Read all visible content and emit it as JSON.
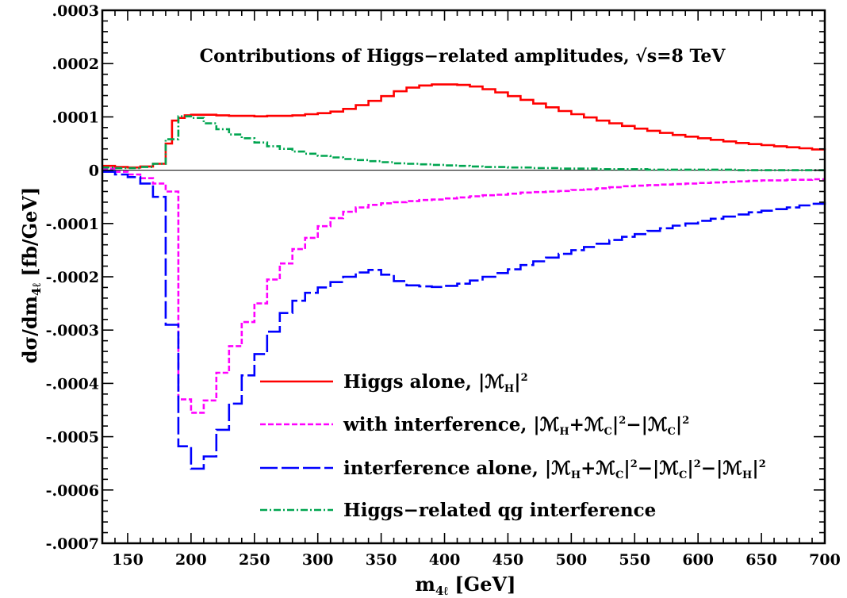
{
  "chart_data": {
    "type": "line",
    "step": true,
    "title": "Contributions of Higgs−related amplitudes, √s=8 TeV",
    "xlabel": "m₄ₗ [GeV]",
    "xlabel_main": "m",
    "xlabel_sub": "4ℓ",
    "xlabel_unit": " [GeV]",
    "ylabel_main": "dσ/dm",
    "ylabel_sub": "4ℓ",
    "ylabel_unit": " [fb/GeV]",
    "xlim": [
      130,
      700
    ],
    "ylim": [
      -0.0007,
      0.0003
    ],
    "xticks": [
      150,
      200,
      250,
      300,
      350,
      400,
      450,
      500,
      550,
      600,
      650,
      700
    ],
    "xtick_labels": [
      "150",
      "200",
      "250",
      "300",
      "350",
      "400",
      "450",
      "500",
      "550",
      "600",
      "650",
      "700"
    ],
    "yticks": [
      0.0003,
      0.0002,
      0.0001,
      0,
      -0.0001,
      -0.0002,
      -0.0003,
      -0.0004,
      -0.0005,
      -0.0006,
      -0.0007
    ],
    "ytick_labels": [
      ".0003",
      ".0002",
      ".0001",
      "0",
      "-.0001",
      "-.0002",
      "-.0003",
      "-.0004",
      "-.0005",
      "-.0006",
      "-.0007"
    ],
    "legend_position": "lower-right",
    "series": [
      {
        "label_text": "Higgs alone, ",
        "label_math": "|ℳH|²",
        "label_parts": [
          [
            "Higgs alone, ",
            "t"
          ],
          [
            "|ℳ",
            "t"
          ],
          [
            "H",
            "sub"
          ],
          [
            "|",
            "t"
          ],
          [
            "2",
            "sup"
          ]
        ],
        "color": "#ff0000",
        "dash": "solid",
        "x": [
          130,
          140,
          150,
          160,
          170,
          180,
          185,
          190,
          195,
          200,
          210,
          220,
          230,
          240,
          250,
          260,
          270,
          280,
          290,
          300,
          310,
          320,
          330,
          340,
          350,
          360,
          370,
          380,
          390,
          400,
          410,
          420,
          430,
          440,
          450,
          460,
          470,
          480,
          490,
          500,
          510,
          520,
          530,
          540,
          550,
          560,
          570,
          580,
          590,
          600,
          610,
          620,
          630,
          640,
          650,
          660,
          670,
          680,
          690,
          700
        ],
        "y": [
          8e-06,
          6e-06,
          5e-06,
          7e-06,
          1.2e-05,
          5e-05,
          9.3e-05,
          9.8e-05,
          0.000103,
          0.000104,
          0.000104,
          0.000103,
          0.000102,
          0.000102,
          0.000101,
          0.000102,
          0.000102,
          0.000103,
          0.000105,
          0.000107,
          0.00011,
          0.000115,
          0.000122,
          0.00013,
          0.000139,
          0.000148,
          0.000155,
          0.000159,
          0.000161,
          0.000161,
          0.00016,
          0.000157,
          0.000152,
          0.000146,
          0.000139,
          0.000132,
          0.000125,
          0.000118,
          0.000111,
          0.000105,
          9.9e-05,
          9.3e-05,
          8.8e-05,
          8.3e-05,
          7.8e-05,
          7.4e-05,
          7e-05,
          6.6e-05,
          6.3e-05,
          6e-05,
          5.7e-05,
          5.4e-05,
          5.1e-05,
          4.9e-05,
          4.7e-05,
          4.5e-05,
          4.3e-05,
          4.1e-05,
          3.9e-05,
          3.8e-05
        ]
      },
      {
        "label_text": "with interference, ",
        "label_math": "|ℳH+ℳC|²−|ℳC|²",
        "label_parts": [
          [
            "with interference, ",
            "t"
          ],
          [
            "|ℳ",
            "t"
          ],
          [
            "H",
            "sub"
          ],
          [
            "+ℳ",
            "t"
          ],
          [
            "C",
            "sub"
          ],
          [
            "|",
            "t"
          ],
          [
            "2",
            "sup"
          ],
          [
            "−|ℳ",
            "t"
          ],
          [
            "C",
            "sub"
          ],
          [
            "|",
            "t"
          ],
          [
            "2",
            "sup"
          ]
        ],
        "color": "#ff00ff",
        "dash": "dashed",
        "x": [
          130,
          140,
          150,
          160,
          170,
          180,
          190,
          200,
          210,
          220,
          230,
          240,
          250,
          260,
          270,
          280,
          290,
          300,
          310,
          320,
          330,
          340,
          350,
          360,
          370,
          380,
          390,
          400,
          410,
          420,
          430,
          440,
          450,
          460,
          470,
          480,
          490,
          500,
          510,
          520,
          530,
          540,
          550,
          560,
          570,
          580,
          590,
          600,
          610,
          620,
          630,
          640,
          650,
          660,
          670,
          680,
          690,
          700
        ],
        "y": [
          3e-06,
          -3e-06,
          -8e-06,
          -1.5e-05,
          -2.5e-05,
          -4e-05,
          -0.00043,
          -0.000455,
          -0.000432,
          -0.00038,
          -0.00033,
          -0.000285,
          -0.00025,
          -0.000205,
          -0.000175,
          -0.000148,
          -0.000127,
          -0.000105,
          -9e-05,
          -7.8e-05,
          -7e-05,
          -6.5e-05,
          -6.2e-05,
          -6e-05,
          -5.8e-05,
          -5.6e-05,
          -5.5e-05,
          -5.3e-05,
          -5.1e-05,
          -4.9e-05,
          -4.7e-05,
          -4.6e-05,
          -4.4e-05,
          -4.2e-05,
          -4.1e-05,
          -4e-05,
          -3.9e-05,
          -3.7e-05,
          -3.6e-05,
          -3.4e-05,
          -3.2e-05,
          -3e-05,
          -2.9e-05,
          -2.8e-05,
          -2.7e-05,
          -2.6e-05,
          -2.5e-05,
          -2.4e-05,
          -2.3e-05,
          -2.2e-05,
          -2.1e-05,
          -2e-05,
          -1.9e-05,
          -1.9e-05,
          -1.8e-05,
          -1.8e-05,
          -1.7e-05,
          -1.7e-05
        ]
      },
      {
        "label_text": "interference alone, ",
        "label_math": "|ℳH+ℳC|²−|ℳC|²−|ℳH|²",
        "label_parts": [
          [
            "interference alone, ",
            "t"
          ],
          [
            "|ℳ",
            "t"
          ],
          [
            "H",
            "sub"
          ],
          [
            "+ℳ",
            "t"
          ],
          [
            "C",
            "sub"
          ],
          [
            "|",
            "t"
          ],
          [
            "2",
            "sup"
          ],
          [
            "−|ℳ",
            "t"
          ],
          [
            "C",
            "sub"
          ],
          [
            "|",
            "t"
          ],
          [
            "2",
            "sup"
          ],
          [
            "−|ℳ",
            "t"
          ],
          [
            "H",
            "sub"
          ],
          [
            "|",
            "t"
          ],
          [
            "2",
            "sup"
          ]
        ],
        "color": "#0000ff",
        "dash": "longdash",
        "x": [
          130,
          140,
          150,
          160,
          170,
          180,
          190,
          200,
          210,
          220,
          230,
          240,
          250,
          260,
          270,
          280,
          290,
          300,
          310,
          320,
          330,
          340,
          350,
          360,
          370,
          380,
          390,
          400,
          410,
          420,
          430,
          440,
          450,
          460,
          470,
          480,
          490,
          500,
          510,
          520,
          530,
          540,
          550,
          560,
          570,
          580,
          590,
          600,
          610,
          620,
          630,
          640,
          650,
          660,
          670,
          680,
          690,
          700
        ],
        "y": [
          -3e-06,
          -8e-06,
          -1.3e-05,
          -2.5e-05,
          -5e-05,
          -0.00029,
          -0.000518,
          -0.00056,
          -0.000537,
          -0.000487,
          -0.000438,
          -0.000385,
          -0.000345,
          -0.000303,
          -0.000268,
          -0.000245,
          -0.00023,
          -0.00022,
          -0.00021,
          -0.0002,
          -0.000192,
          -0.000187,
          -0.000196,
          -0.000208,
          -0.000216,
          -0.000218,
          -0.000219,
          -0.000217,
          -0.000213,
          -0.000207,
          -0.0002,
          -0.000193,
          -0.000186,
          -0.000178,
          -0.000171,
          -0.000164,
          -0.000157,
          -0.00015,
          -0.000144,
          -0.000138,
          -0.000131,
          -0.000125,
          -0.00012,
          -0.000114,
          -0.000109,
          -0.000104,
          -0.0001,
          -9.5e-05,
          -9.1e-05,
          -8.7e-05,
          -8.3e-05,
          -7.9e-05,
          -7.6e-05,
          -7.3e-05,
          -7e-05,
          -6.6e-05,
          -6.3e-05,
          -6e-05
        ]
      },
      {
        "label_text": "Higgs−related qg interference",
        "label_math": "",
        "label_parts": [
          [
            "Higgs−related qg interference",
            "t"
          ]
        ],
        "color": "#00a550",
        "dash": "dashdot",
        "x": [
          130,
          140,
          150,
          160,
          170,
          180,
          190,
          200,
          210,
          220,
          230,
          240,
          250,
          260,
          270,
          280,
          290,
          300,
          310,
          320,
          330,
          340,
          350,
          360,
          370,
          380,
          390,
          400,
          410,
          420,
          430,
          440,
          450,
          460,
          470,
          480,
          490,
          500,
          510,
          520,
          530,
          540,
          550,
          560,
          570,
          580,
          590,
          600,
          610,
          620,
          630,
          640,
          650,
          660,
          670,
          680,
          690,
          700
        ],
        "y": [
          5e-06,
          4e-06,
          4e-06,
          6e-06,
          1.2e-05,
          5.8e-05,
          0.000101,
          9.8e-05,
          8.8e-05,
          7.7e-05,
          6.7e-05,
          6e-05,
          5.2e-05,
          4.5e-05,
          4e-05,
          3.5e-05,
          3.1e-05,
          2.7e-05,
          2.4e-05,
          2.1e-05,
          1.9e-05,
          1.7e-05,
          1.5e-05,
          1.3e-05,
          1.2e-05,
          1.1e-05,
          1e-05,
          9e-06,
          8e-06,
          7e-06,
          6e-06,
          6e-06,
          5e-06,
          5e-06,
          4e-06,
          4e-06,
          3e-06,
          3e-06,
          3e-06,
          2e-06,
          2e-06,
          2e-06,
          2e-06,
          1e-06,
          1e-06,
          1e-06,
          1e-06,
          1e-06,
          1e-06,
          1e-06,
          0,
          0,
          0,
          0,
          0,
          0,
          0,
          0
        ]
      }
    ]
  }
}
